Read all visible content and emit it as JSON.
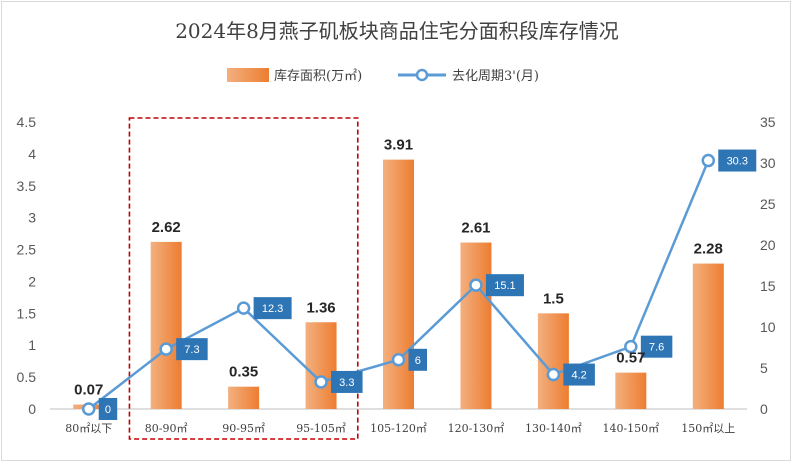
{
  "chart_data": {
    "type": "bar",
    "title": "2024年8月燕子矶板块商品住宅分面积段库存情况",
    "categories": [
      "80㎡以下",
      "80-90㎡",
      "90-95㎡",
      "95-105㎡",
      "105-120㎡",
      "120-130㎡",
      "130-140㎡",
      "140-150㎡",
      "150㎡以上"
    ],
    "series": [
      {
        "name": "库存面积(万㎡)",
        "type": "bar",
        "axis": "left",
        "color": "#ed7d31",
        "values": [
          0.07,
          2.62,
          0.35,
          1.36,
          3.91,
          2.61,
          1.5,
          0.57,
          2.28
        ]
      },
      {
        "name": "去化周期3'(月)",
        "type": "line",
        "axis": "right",
        "color": "#5b9bd5",
        "values": [
          0,
          7.3,
          12.3,
          3.3,
          6,
          15.1,
          4.2,
          7.6,
          30.3
        ]
      }
    ],
    "y_left": {
      "min": 0,
      "max": 4.5,
      "ticks": [
        "0",
        "0.5",
        "1",
        "1.5",
        "2",
        "2.5",
        "3",
        "3.5",
        "4",
        "4.5"
      ]
    },
    "y_right": {
      "min": 0,
      "max": 35,
      "ticks": [
        "0",
        "5",
        "10",
        "15",
        "20",
        "25",
        "30",
        "35"
      ]
    },
    "bar_labels": [
      "0.07",
      "2.62",
      "0.35",
      "1.36",
      "3.91",
      "2.61",
      "1.5",
      "0.57",
      "2.28"
    ],
    "line_labels": [
      "0",
      "7.3",
      "12.3",
      "3.3",
      "6",
      "15.1",
      "4.2",
      "7.6",
      "30.3"
    ],
    "grid": false,
    "legend_position": "top",
    "highlight_color": "#c00000"
  }
}
